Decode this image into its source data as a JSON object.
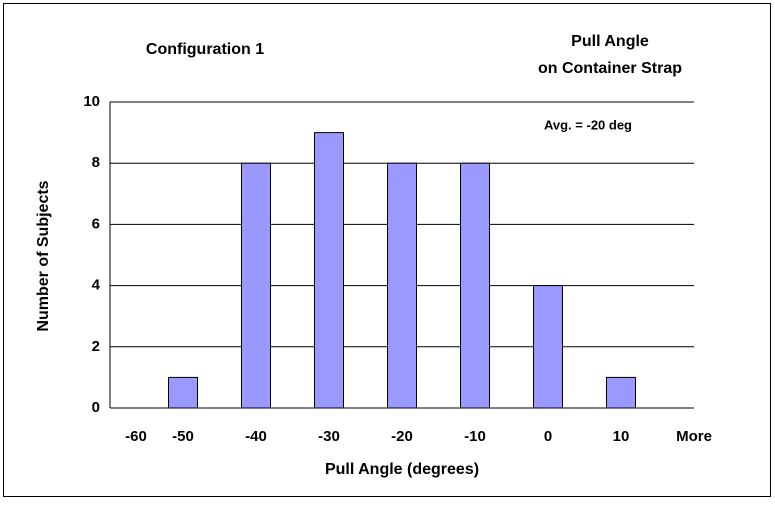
{
  "chart_data": {
    "type": "bar",
    "title": [
      "Pull Angle",
      "on Container Strap"
    ],
    "annotations": [
      "Configuration 1",
      "Avg. = -20 deg"
    ],
    "x_label": "Pull Angle (degrees)",
    "y_label": "Number of Subjects",
    "categories": [
      "-60",
      "-50",
      "-40",
      "-30",
      "-20",
      "-10",
      "0",
      "10",
      "More"
    ],
    "values": [
      0,
      1,
      8,
      9,
      8,
      8,
      4,
      1,
      0
    ],
    "color": "#9999ff",
    "ylim": [
      0,
      10
    ],
    "yticks": [
      0,
      2,
      4,
      6,
      8,
      10
    ],
    "grid": true
  }
}
